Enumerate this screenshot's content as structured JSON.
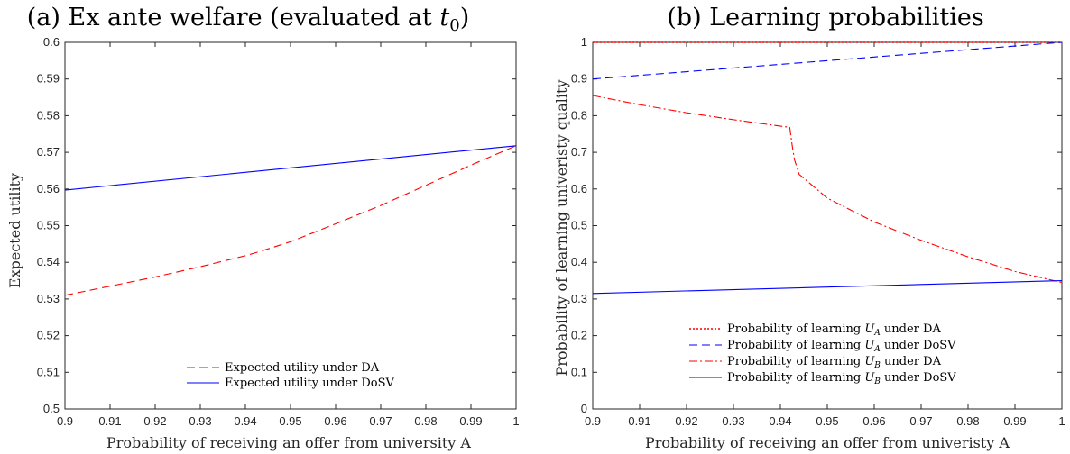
{
  "chart_data": [
    {
      "type": "line",
      "title": "(a) Ex ante welfare (evaluated at t0)",
      "title_main": "(a) Ex ante welfare (evaluated at ",
      "title_var": "t",
      "title_sub": "0",
      "title_close": ")",
      "xlabel": "Probability of receiving an offer from university A",
      "ylabel": "Expected utility",
      "xlim": [
        0.9,
        1.0
      ],
      "ylim": [
        0.5,
        0.6
      ],
      "xticks": [
        "0.9",
        "0.91",
        "0.92",
        "0.93",
        "0.94",
        "0.95",
        "0.96",
        "0.97",
        "0.98",
        "0.99",
        "1"
      ],
      "yticks": [
        "0.5",
        "0.51",
        "0.52",
        "0.53",
        "0.54",
        "0.55",
        "0.56",
        "0.57",
        "0.58",
        "0.59",
        "0.6"
      ],
      "grid": false,
      "legend_position": "bottom-center",
      "series": [
        {
          "name": "Expected utility under DA",
          "color": "#ff0000",
          "style": "dashed",
          "x": [
            0.9,
            0.91,
            0.92,
            0.93,
            0.94,
            0.942,
            0.95,
            0.96,
            0.97,
            0.98,
            0.99,
            1.0
          ],
          "y": [
            0.531,
            0.5335,
            0.536,
            0.5388,
            0.5418,
            0.5425,
            0.5456,
            0.5505,
            0.5555,
            0.561,
            0.5665,
            0.5718
          ]
        },
        {
          "name": "Expected utility under DoSV",
          "color": "#0000ff",
          "style": "solid",
          "x": [
            0.9,
            1.0
          ],
          "y": [
            0.5597,
            0.5718
          ]
        }
      ]
    },
    {
      "type": "line",
      "title": "(b) Learning probabilities",
      "xlabel": "Probability of receiving an offer from univeristy A",
      "ylabel": "Probability of learning univeristy quality",
      "xlim": [
        0.9,
        1.0
      ],
      "ylim": [
        0,
        1
      ],
      "xticks": [
        "0.9",
        "0.91",
        "0.92",
        "0.93",
        "0.94",
        "0.95",
        "0.96",
        "0.97",
        "0.98",
        "0.99",
        "1"
      ],
      "yticks": [
        "0",
        "0.1",
        "0.2",
        "0.3",
        "0.4",
        "0.5",
        "0.6",
        "0.7",
        "0.8",
        "0.9",
        "1"
      ],
      "grid": false,
      "legend_position": "bottom-center",
      "series": [
        {
          "name": "Probability of learning U_A under DA",
          "label_pre": "Probability of learning ",
          "label_var": "U",
          "label_sub": "A",
          "label_post": " under DA",
          "color": "#ff0000",
          "style": "dotted",
          "x": [
            0.9,
            1.0
          ],
          "y": [
            1.0,
            1.0
          ]
        },
        {
          "name": "Probability of learning U_A under DoSV",
          "label_pre": "Probability of learning ",
          "label_var": "U",
          "label_sub": "A",
          "label_post": " under DoSV",
          "color": "#0000ff",
          "style": "dashed",
          "x": [
            0.9,
            1.0
          ],
          "y": [
            0.9,
            1.0
          ]
        },
        {
          "name": "Probability of learning U_B under DA",
          "label_pre": "Probability of learning ",
          "label_var": "U",
          "label_sub": "B",
          "label_post": " under DA",
          "color": "#ff0000",
          "style": "dashdot",
          "x": [
            0.9,
            0.91,
            0.92,
            0.93,
            0.942,
            0.9425,
            0.943,
            0.944,
            0.95,
            0.96,
            0.97,
            0.98,
            0.99,
            1.0
          ],
          "y": [
            0.855,
            0.83,
            0.808,
            0.789,
            0.768,
            0.72,
            0.68,
            0.64,
            0.575,
            0.51,
            0.46,
            0.415,
            0.375,
            0.345
          ]
        },
        {
          "name": "Probability of learning U_B under DoSV",
          "label_pre": "Probability of learning ",
          "label_var": "U",
          "label_sub": "B",
          "label_post": " under DoSV",
          "color": "#0000ff",
          "style": "solid",
          "x": [
            0.9,
            1.0
          ],
          "y": [
            0.315,
            0.35
          ]
        }
      ]
    }
  ]
}
